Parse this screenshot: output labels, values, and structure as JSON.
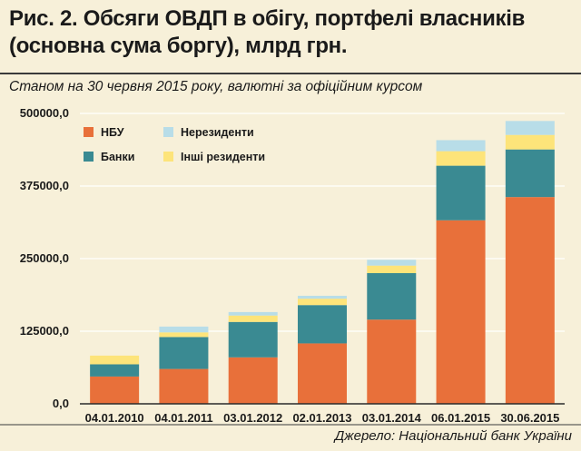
{
  "header": {
    "title_line1": "Рис. 2. Обсяги ОВДП в обігу, портфелі власників",
    "title_line2": "(основна сума боргу), млрд грн.",
    "subtitle": "Станом на 30 червня 2015 року, валютні за офіційним курсом",
    "source": "Джерело: Національний банк України"
  },
  "chart_data": {
    "type": "bar",
    "stacked": true,
    "title": "Рис. 2. Обсяги ОВДП в обігу, портфелі власників (основна сума боргу), млрд грн.",
    "xlabel": "",
    "ylabel": "",
    "ylim": [
      0,
      500000
    ],
    "yticks": [
      0,
      125000,
      250000,
      375000,
      500000
    ],
    "ytick_labels": [
      "0,0",
      "125000,0",
      "250000,0",
      "375000,0",
      "500000,0"
    ],
    "grid": true,
    "legend_position": "top-left",
    "categories": [
      "04.01.2010",
      "04.01.2011",
      "03.01.2012",
      "02.01.2013",
      "03.01.2014",
      "06.01.2015",
      "30.06.2015"
    ],
    "series": [
      {
        "name": "НБУ",
        "color": "#e8703a",
        "values": [
          47000,
          60000,
          80000,
          104000,
          145000,
          316000,
          356000
        ]
      },
      {
        "name": "Банки",
        "color": "#3a8a92",
        "values": [
          21000,
          55000,
          61000,
          66000,
          80000,
          94000,
          82000
        ]
      },
      {
        "name": "Інші резиденти",
        "color": "#fde47a",
        "values": [
          15000,
          8000,
          11000,
          11000,
          13000,
          25000,
          25000
        ]
      },
      {
        "name": "Нерезиденти",
        "color": "#b8dde8",
        "values": [
          0,
          10000,
          6000,
          5000,
          10000,
          19000,
          24000
        ]
      }
    ],
    "legend_order": [
      "НБУ",
      "Нерезиденти",
      "Банки",
      "Інші резиденти"
    ]
  }
}
